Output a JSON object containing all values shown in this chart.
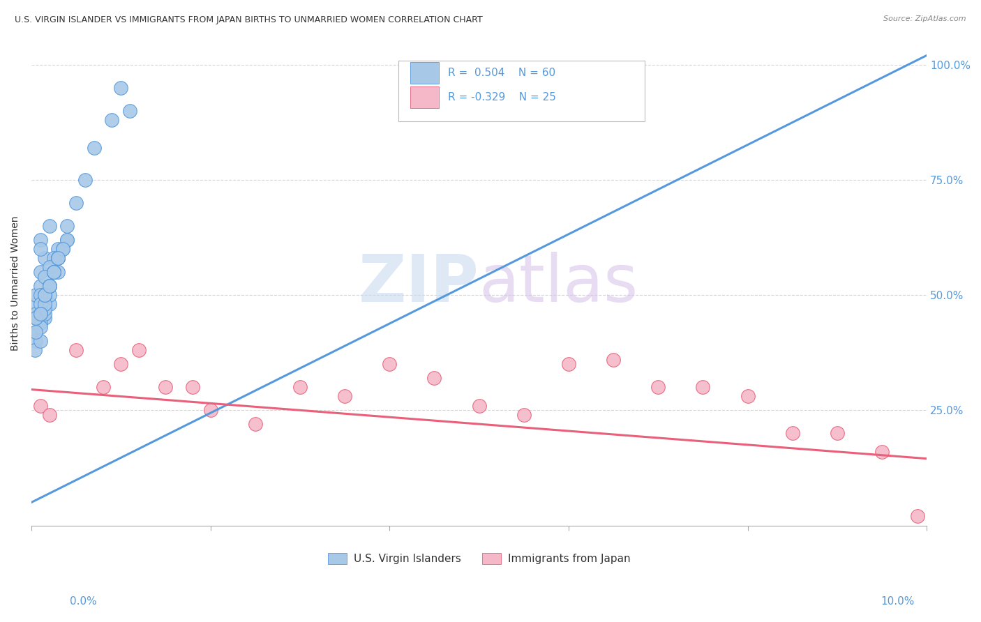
{
  "title": "U.S. VIRGIN ISLANDER VS IMMIGRANTS FROM JAPAN BIRTHS TO UNMARRIED WOMEN CORRELATION CHART",
  "source": "Source: ZipAtlas.com",
  "ylabel": "Births to Unmarried Women",
  "blue_R": 0.504,
  "blue_N": 60,
  "pink_R": -0.329,
  "pink_N": 25,
  "blue_color": "#a8c8e8",
  "pink_color": "#f5b8c8",
  "blue_line_color": "#5599dd",
  "pink_line_color": "#e8607a",
  "watermark_zip": "ZIP",
  "watermark_atlas": "atlas",
  "legend_blue_label": "U.S. Virgin Islanders",
  "legend_pink_label": "Immigrants from Japan",
  "blue_scatter_x": [
    0.0005,
    0.001,
    0.001,
    0.0015,
    0.001,
    0.002,
    0.0005,
    0.001,
    0.0015,
    0.002,
    0.0005,
    0.001,
    0.0005,
    0.0015,
    0.001,
    0.002,
    0.002,
    0.0015,
    0.0004,
    0.001,
    0.003,
    0.003,
    0.0025,
    0.002,
    0.0015,
    0.001,
    0.0005,
    0.004,
    0.003,
    0.0025,
    0.004,
    0.0035,
    0.0015,
    0.001,
    0.002,
    0.0005,
    0.0025,
    0.003,
    0.001,
    0.0015,
    0.005,
    0.006,
    0.002,
    0.0015,
    0.0025,
    0.001,
    0.0005,
    0.004,
    0.003,
    0.0035,
    0.007,
    0.009,
    0.01,
    0.011,
    0.0025,
    0.0015,
    0.0005,
    0.002,
    0.001,
    0.003
  ],
  "blue_scatter_y": [
    0.48,
    0.62,
    0.55,
    0.58,
    0.6,
    0.65,
    0.5,
    0.52,
    0.45,
    0.48,
    0.42,
    0.44,
    0.4,
    0.46,
    0.43,
    0.5,
    0.52,
    0.47,
    0.38,
    0.4,
    0.55,
    0.6,
    0.58,
    0.56,
    0.54,
    0.5,
    0.46,
    0.62,
    0.58,
    0.55,
    0.65,
    0.6,
    0.5,
    0.48,
    0.52,
    0.45,
    0.55,
    0.58,
    0.46,
    0.48,
    0.7,
    0.75,
    0.52,
    0.5,
    0.55,
    0.46,
    0.42,
    0.62,
    0.58,
    0.6,
    0.82,
    0.88,
    0.95,
    0.9,
    0.55,
    0.5,
    0.45,
    0.52,
    0.46,
    0.58
  ],
  "pink_scatter_x": [
    0.001,
    0.002,
    0.005,
    0.008,
    0.01,
    0.012,
    0.015,
    0.018,
    0.02,
    0.025,
    0.03,
    0.035,
    0.04,
    0.045,
    0.05,
    0.055,
    0.06,
    0.065,
    0.07,
    0.075,
    0.08,
    0.085,
    0.09,
    0.095,
    0.099
  ],
  "pink_scatter_y": [
    0.26,
    0.24,
    0.38,
    0.3,
    0.35,
    0.38,
    0.3,
    0.3,
    0.25,
    0.22,
    0.3,
    0.28,
    0.35,
    0.32,
    0.26,
    0.24,
    0.35,
    0.36,
    0.3,
    0.3,
    0.28,
    0.2,
    0.2,
    0.16,
    0.02
  ],
  "blue_trend_x": [
    0.0,
    0.1
  ],
  "blue_trend_y": [
    0.05,
    1.02
  ],
  "pink_trend_x": [
    0.0,
    0.1
  ],
  "pink_trend_y": [
    0.295,
    0.145
  ],
  "xlim": [
    0.0,
    0.1
  ],
  "ylim": [
    0.0,
    1.05
  ],
  "yticks": [
    0.25,
    0.5,
    0.75,
    1.0
  ],
  "ytick_labels": [
    "25.0%",
    "50.0%",
    "75.0%",
    "100.0%"
  ],
  "xtick_positions": [
    0.0,
    0.02,
    0.04,
    0.06,
    0.08,
    0.1
  ]
}
